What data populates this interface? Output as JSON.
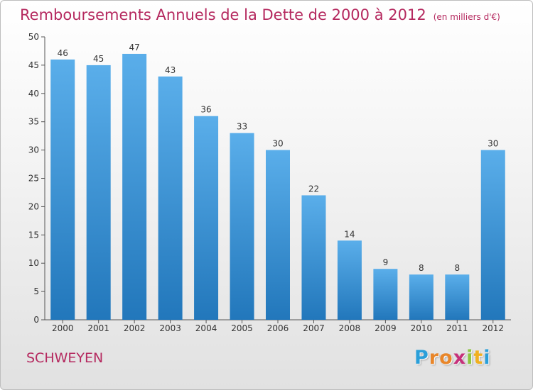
{
  "header": {
    "title": "Remboursements Annuels de la Dette de 2000 à 2012",
    "unit": "(en milliers d'€)"
  },
  "footer": {
    "commune": "SCHWEYEN",
    "logo": {
      "letters": [
        "P",
        "r",
        "o",
        "x",
        "i",
        "t",
        "i"
      ],
      "colors": [
        "#2a9fd9",
        "#e8862a",
        "#e8862a",
        "#c6307a",
        "#8dc63f",
        "#f0b020",
        "#2a9fd9"
      ]
    }
  },
  "colors": {
    "title": "#b5295f",
    "bar_top": "#5aaeea",
    "bar_bottom": "#2277bb",
    "axis": "#555555",
    "grid": "#d8d8d8"
  },
  "chart_data": {
    "type": "bar",
    "title": "Remboursements Annuels de la Dette de 2000 à 2012",
    "categories": [
      "2000",
      "2001",
      "2002",
      "2003",
      "2004",
      "2005",
      "2006",
      "2007",
      "2008",
      "2009",
      "2010",
      "2011",
      "2012"
    ],
    "values": [
      46,
      45,
      47,
      43,
      36,
      33,
      30,
      22,
      14,
      9,
      8,
      8,
      30
    ],
    "ylim": [
      0,
      50
    ],
    "yticks": [
      0,
      5,
      10,
      15,
      20,
      25,
      30,
      35,
      40,
      45,
      50
    ],
    "grid": false,
    "legend": "none"
  }
}
